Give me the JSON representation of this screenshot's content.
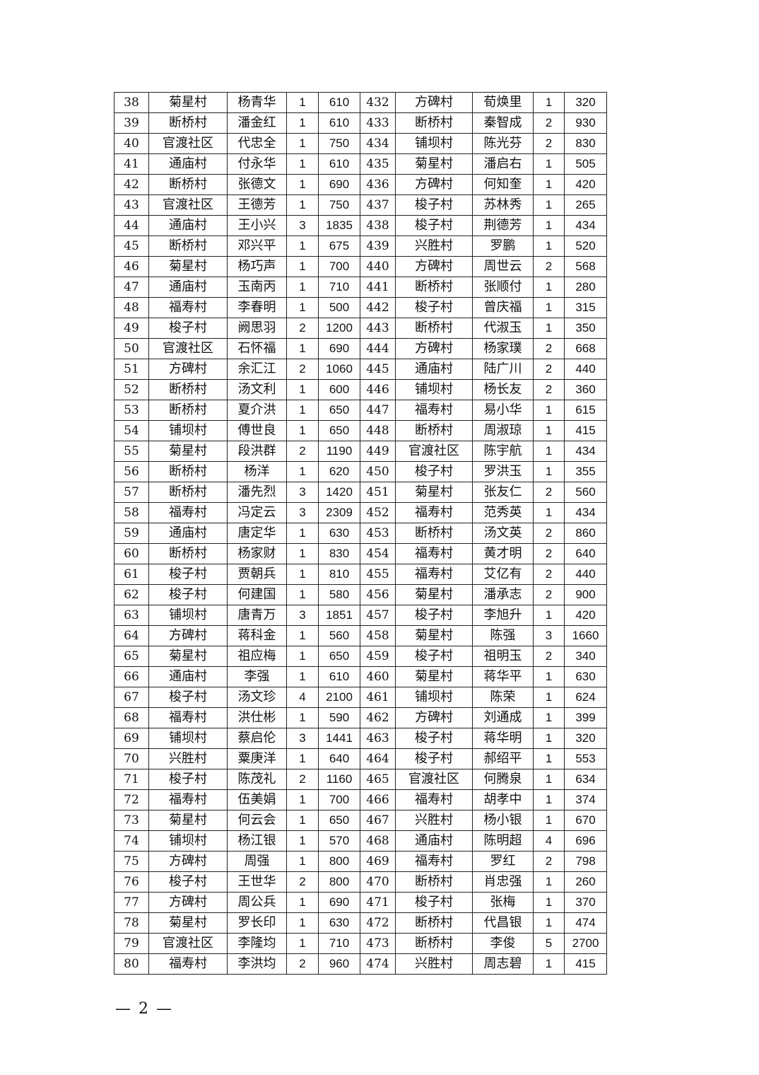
{
  "table": {
    "rows": [
      [
        "38",
        "菊星村",
        "杨青华",
        "1",
        "610",
        "432",
        "方碑村",
        "荀焕里",
        "1",
        "320"
      ],
      [
        "39",
        "断桥村",
        "潘金红",
        "1",
        "610",
        "433",
        "断桥村",
        "秦智成",
        "2",
        "930"
      ],
      [
        "40",
        "官渡社区",
        "代忠全",
        "1",
        "750",
        "434",
        "铺坝村",
        "陈光芬",
        "2",
        "830"
      ],
      [
        "41",
        "通庙村",
        "付永华",
        "1",
        "610",
        "435",
        "菊星村",
        "潘启右",
        "1",
        "505"
      ],
      [
        "42",
        "断桥村",
        "张德文",
        "1",
        "690",
        "436",
        "方碑村",
        "何知奎",
        "1",
        "420"
      ],
      [
        "43",
        "官渡社区",
        "王德芳",
        "1",
        "750",
        "437",
        "梭子村",
        "苏林秀",
        "1",
        "265"
      ],
      [
        "44",
        "通庙村",
        "王小兴",
        "3",
        "1835",
        "438",
        "梭子村",
        "荆德芳",
        "1",
        "434"
      ],
      [
        "45",
        "断桥村",
        "邓兴平",
        "1",
        "675",
        "439",
        "兴胜村",
        "罗鹏",
        "1",
        "520"
      ],
      [
        "46",
        "菊星村",
        "杨巧声",
        "1",
        "700",
        "440",
        "方碑村",
        "周世云",
        "2",
        "568"
      ],
      [
        "47",
        "通庙村",
        "玉南丙",
        "1",
        "710",
        "441",
        "断桥村",
        "张顺付",
        "1",
        "280"
      ],
      [
        "48",
        "福寿村",
        "李春明",
        "1",
        "500",
        "442",
        "梭子村",
        "曾庆福",
        "1",
        "315"
      ],
      [
        "49",
        "梭子村",
        "阙思羽",
        "2",
        "1200",
        "443",
        "断桥村",
        "代淑玉",
        "1",
        "350"
      ],
      [
        "50",
        "官渡社区",
        "石怀福",
        "1",
        "690",
        "444",
        "方碑村",
        "杨家璞",
        "2",
        "668"
      ],
      [
        "51",
        "方碑村",
        "余汇江",
        "2",
        "1060",
        "445",
        "通庙村",
        "陆广川",
        "2",
        "440"
      ],
      [
        "52",
        "断桥村",
        "汤文利",
        "1",
        "600",
        "446",
        "铺坝村",
        "杨长友",
        "2",
        "360"
      ],
      [
        "53",
        "断桥村",
        "夏介洪",
        "1",
        "650",
        "447",
        "福寿村",
        "易小华",
        "1",
        "615"
      ],
      [
        "54",
        "铺坝村",
        "傅世良",
        "1",
        "650",
        "448",
        "断桥村",
        "周淑琼",
        "1",
        "415"
      ],
      [
        "55",
        "菊星村",
        "段洪群",
        "2",
        "1190",
        "449",
        "官渡社区",
        "陈宇航",
        "1",
        "434"
      ],
      [
        "56",
        "断桥村",
        "杨洋",
        "1",
        "620",
        "450",
        "梭子村",
        "罗洪玉",
        "1",
        "355"
      ],
      [
        "57",
        "断桥村",
        "潘先烈",
        "3",
        "1420",
        "451",
        "菊星村",
        "张友仁",
        "2",
        "560"
      ],
      [
        "58",
        "福寿村",
        "冯定云",
        "3",
        "2309",
        "452",
        "福寿村",
        "范秀英",
        "1",
        "434"
      ],
      [
        "59",
        "通庙村",
        "唐定华",
        "1",
        "630",
        "453",
        "断桥村",
        "汤文英",
        "2",
        "860"
      ],
      [
        "60",
        "断桥村",
        "杨家财",
        "1",
        "830",
        "454",
        "福寿村",
        "黄才明",
        "2",
        "640"
      ],
      [
        "61",
        "梭子村",
        "贾朝兵",
        "1",
        "810",
        "455",
        "福寿村",
        "艾亿有",
        "2",
        "440"
      ],
      [
        "62",
        "梭子村",
        "何建国",
        "1",
        "580",
        "456",
        "菊星村",
        "潘承志",
        "2",
        "900"
      ],
      [
        "63",
        "铺坝村",
        "唐青万",
        "3",
        "1851",
        "457",
        "梭子村",
        "李旭升",
        "1",
        "420"
      ],
      [
        "64",
        "方碑村",
        "蒋科金",
        "1",
        "560",
        "458",
        "菊星村",
        "陈强",
        "3",
        "1660"
      ],
      [
        "65",
        "菊星村",
        "祖应梅",
        "1",
        "650",
        "459",
        "梭子村",
        "祖明玉",
        "2",
        "340"
      ],
      [
        "66",
        "通庙村",
        "李强",
        "1",
        "610",
        "460",
        "菊星村",
        "蒋华平",
        "1",
        "630"
      ],
      [
        "67",
        "梭子村",
        "汤文珍",
        "4",
        "2100",
        "461",
        "铺坝村",
        "陈荣",
        "1",
        "624"
      ],
      [
        "68",
        "福寿村",
        "洪仕彬",
        "1",
        "590",
        "462",
        "方碑村",
        "刘通成",
        "1",
        "399"
      ],
      [
        "69",
        "铺坝村",
        "蔡启伦",
        "3",
        "1441",
        "463",
        "梭子村",
        "蒋华明",
        "1",
        "320"
      ],
      [
        "70",
        "兴胜村",
        "粟庚洋",
        "1",
        "640",
        "464",
        "梭子村",
        "郝绍平",
        "1",
        "553"
      ],
      [
        "71",
        "梭子村",
        "陈茂礼",
        "2",
        "1160",
        "465",
        "官渡社区",
        "何腾泉",
        "1",
        "634"
      ],
      [
        "72",
        "福寿村",
        "伍美娟",
        "1",
        "700",
        "466",
        "福寿村",
        "胡孝中",
        "1",
        "374"
      ],
      [
        "73",
        "菊星村",
        "何云会",
        "1",
        "650",
        "467",
        "兴胜村",
        "杨小银",
        "1",
        "670"
      ],
      [
        "74",
        "铺坝村",
        "杨江银",
        "1",
        "570",
        "468",
        "通庙村",
        "陈明超",
        "4",
        "696"
      ],
      [
        "75",
        "方碑村",
        "周强",
        "1",
        "800",
        "469",
        "福寿村",
        "罗红",
        "2",
        "798"
      ],
      [
        "76",
        "梭子村",
        "王世华",
        "2",
        "800",
        "470",
        "断桥村",
        "肖忠强",
        "1",
        "260"
      ],
      [
        "77",
        "方碑村",
        "周公兵",
        "1",
        "690",
        "471",
        "梭子村",
        "张梅",
        "1",
        "370"
      ],
      [
        "78",
        "菊星村",
        "罗长印",
        "1",
        "630",
        "472",
        "断桥村",
        "代昌银",
        "1",
        "474"
      ],
      [
        "79",
        "官渡社区",
        "李隆均",
        "1",
        "710",
        "473",
        "断桥村",
        "李俊",
        "5",
        "2700"
      ],
      [
        "80",
        "福寿村",
        "李洪均",
        "2",
        "960",
        "474",
        "兴胜村",
        "周志碧",
        "1",
        "415"
      ]
    ]
  },
  "footer": {
    "page_number": "— 2 —"
  }
}
